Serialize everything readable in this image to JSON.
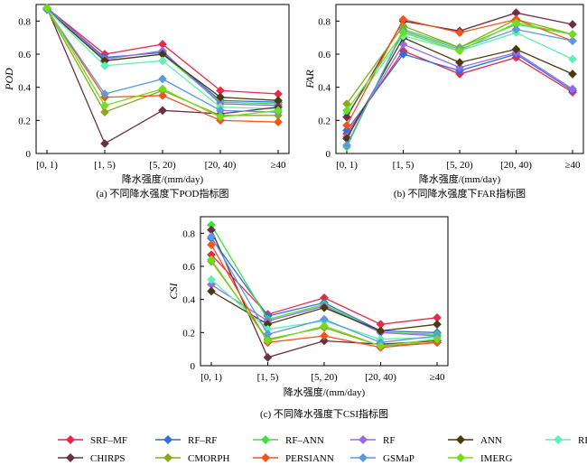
{
  "chart_data": [
    {
      "type": "line",
      "ylabel": "POD",
      "xlabel": "降水强度/(mm/day)",
      "caption": "(a) 不同降水强度下POD指标图",
      "categories": [
        "[0, 1)",
        "[1, 5)",
        "[5, 20)",
        "[20, 40)",
        "≥40"
      ],
      "ylim": [
        0,
        0.9
      ],
      "yticks": [
        "0",
        "0.2",
        "0.4",
        "0.6",
        "0.8"
      ],
      "ytick_values": [
        0,
        0.2,
        0.4,
        0.6,
        0.8
      ],
      "series": [
        {
          "name": "SRF–MF",
          "values": [
            0.88,
            0.6,
            0.66,
            0.38,
            0.36
          ]
        },
        {
          "name": "RF–RF",
          "values": [
            0.88,
            0.58,
            0.61,
            0.32,
            0.31
          ]
        },
        {
          "name": "RF–ANN",
          "values": [
            0.87,
            0.56,
            0.6,
            0.31,
            0.3
          ]
        },
        {
          "name": "RF",
          "values": [
            0.88,
            0.57,
            0.62,
            0.3,
            0.29
          ]
        },
        {
          "name": "ANN",
          "values": [
            0.87,
            0.56,
            0.6,
            0.34,
            0.32
          ]
        },
        {
          "name": "RF–MEP",
          "values": [
            0.87,
            0.53,
            0.56,
            0.28,
            0.27
          ]
        },
        {
          "name": "CHIRPS",
          "values": [
            0.88,
            0.06,
            0.26,
            0.24,
            0.28
          ]
        },
        {
          "name": "CMORPH",
          "values": [
            0.87,
            0.25,
            0.38,
            0.23,
            0.23
          ]
        },
        {
          "name": "PERSIANN",
          "values": [
            0.87,
            0.34,
            0.35,
            0.2,
            0.19
          ]
        },
        {
          "name": "GSMaP",
          "values": [
            0.87,
            0.36,
            0.45,
            0.26,
            0.25
          ]
        },
        {
          "name": "IMERG",
          "values": [
            0.88,
            0.29,
            0.39,
            0.22,
            0.26
          ]
        }
      ]
    },
    {
      "type": "line",
      "ylabel": "FAR",
      "xlabel": "降水强度/(mm/day)",
      "caption": "(b) 不同降水强度下FAR指标图",
      "categories": [
        "[0, 1)",
        "[1, 5)",
        "[5, 20)",
        "[20, 40)",
        "≥40"
      ],
      "ylim": [
        0,
        0.9
      ],
      "yticks": [
        "0",
        "0.2",
        "0.4",
        "0.6",
        "0.8"
      ],
      "ytick_values": [
        0,
        0.2,
        0.4,
        0.6,
        0.8
      ],
      "series": [
        {
          "name": "SRF–MF",
          "values": [
            0.12,
            0.62,
            0.48,
            0.58,
            0.37
          ]
        },
        {
          "name": "RF–RF",
          "values": [
            0.14,
            0.6,
            0.5,
            0.6,
            0.38
          ]
        },
        {
          "name": "RF–ANN",
          "values": [
            0.04,
            0.75,
            0.64,
            0.78,
            0.72
          ]
        },
        {
          "name": "RF",
          "values": [
            0.1,
            0.66,
            0.52,
            0.61,
            0.39
          ]
        },
        {
          "name": "ANN",
          "values": [
            0.09,
            0.7,
            0.55,
            0.63,
            0.48
          ]
        },
        {
          "name": "RF–MEP",
          "values": [
            0.24,
            0.71,
            0.62,
            0.73,
            0.57
          ]
        },
        {
          "name": "CHIRPS",
          "values": [
            0.22,
            0.8,
            0.74,
            0.85,
            0.78
          ]
        },
        {
          "name": "CMORPH",
          "values": [
            0.3,
            0.77,
            0.64,
            0.81,
            0.72
          ]
        },
        {
          "name": "PERSIANN",
          "values": [
            0.17,
            0.81,
            0.73,
            0.81,
            0.68
          ]
        },
        {
          "name": "GSMaP",
          "values": [
            0.05,
            0.74,
            0.63,
            0.75,
            0.68
          ]
        },
        {
          "name": "IMERG",
          "values": [
            0.26,
            0.73,
            0.62,
            0.79,
            0.72
          ]
        }
      ]
    },
    {
      "type": "line",
      "ylabel": "CSI",
      "xlabel": "降水强度/(mm/day)",
      "caption": "(c) 不同降水强度下CSI指标图",
      "categories": [
        "[0, 1)",
        "[1, 5)",
        "[5, 20)",
        "[20, 40)",
        "≥40"
      ],
      "ylim": [
        0,
        0.9
      ],
      "yticks": [
        "0",
        "0.2",
        "0.4",
        "0.6",
        "0.8"
      ],
      "ytick_values": [
        0,
        0.2,
        0.4,
        0.6,
        0.8
      ],
      "series": [
        {
          "name": "SRF–MF",
          "values": [
            0.67,
            0.31,
            0.41,
            0.25,
            0.29
          ]
        },
        {
          "name": "RF–RF",
          "values": [
            0.77,
            0.3,
            0.38,
            0.21,
            0.2
          ]
        },
        {
          "name": "RF–ANN",
          "values": [
            0.85,
            0.28,
            0.37,
            0.2,
            0.19
          ]
        },
        {
          "name": "RF",
          "values": [
            0.49,
            0.27,
            0.36,
            0.2,
            0.18
          ]
        },
        {
          "name": "ANN",
          "values": [
            0.45,
            0.25,
            0.35,
            0.21,
            0.25
          ]
        },
        {
          "name": "RF–MEP",
          "values": [
            0.52,
            0.22,
            0.27,
            0.16,
            0.17
          ]
        },
        {
          "name": "CHIRPS",
          "values": [
            0.82,
            0.05,
            0.15,
            0.13,
            0.15
          ]
        },
        {
          "name": "CMORPH",
          "values": [
            0.63,
            0.16,
            0.23,
            0.12,
            0.14
          ]
        },
        {
          "name": "PERSIANN",
          "values": [
            0.73,
            0.14,
            0.18,
            0.11,
            0.14
          ]
        },
        {
          "name": "GSMaP",
          "values": [
            0.78,
            0.19,
            0.28,
            0.14,
            0.18
          ]
        },
        {
          "name": "IMERG",
          "values": [
            0.64,
            0.15,
            0.24,
            0.12,
            0.16
          ]
        }
      ]
    }
  ],
  "legend": [
    {
      "name": "SRF–MF",
      "color": "#e8294b"
    },
    {
      "name": "RF–RF",
      "color": "#2f6fe0"
    },
    {
      "name": "RF–ANN",
      "color": "#3ee03e"
    },
    {
      "name": "RF",
      "color": "#9a6ae8"
    },
    {
      "name": "ANN",
      "color": "#4a3a0c"
    },
    {
      "name": "RF–MEP",
      "color": "#5ef0b4"
    },
    {
      "name": "CHIRPS",
      "color": "#6a3046"
    },
    {
      "name": "CMORPH",
      "color": "#8aa81c"
    },
    {
      "name": "PERSIANN",
      "color": "#f2541c"
    },
    {
      "name": "GSMaP",
      "color": "#5c9ae0"
    },
    {
      "name": "IMERG",
      "color": "#72dc1e"
    }
  ]
}
